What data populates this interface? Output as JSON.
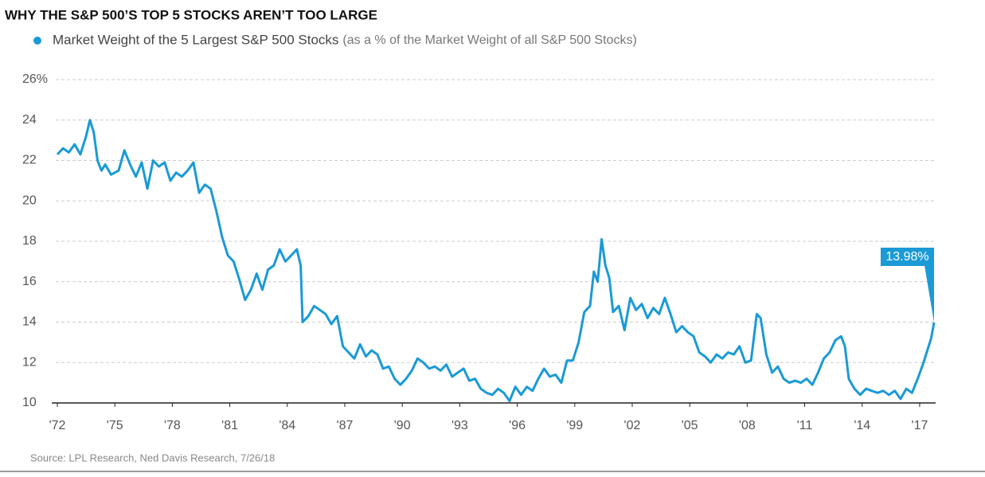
{
  "chart_data": {
    "type": "line",
    "title": "WHY THE S&P 500’S TOP 5 STOCKS AREN’T TOO LARGE",
    "series_note": "(as a % of the Market Weight of all S&P 500 Stocks)",
    "source": "Source: LPL Research, Ned Davis Research, 7/26/18",
    "x": [
      1972.0,
      1972.3,
      1972.6,
      1972.9,
      1973.2,
      1973.5,
      1973.7,
      1973.9,
      1974.1,
      1974.3,
      1974.5,
      1974.8,
      1975.2,
      1975.5,
      1975.8,
      1976.1,
      1976.4,
      1976.7,
      1977.0,
      1977.3,
      1977.6,
      1977.9,
      1978.2,
      1978.5,
      1978.8,
      1979.1,
      1979.4,
      1979.7,
      1980.0,
      1980.3,
      1980.6,
      1980.9,
      1981.2,
      1981.5,
      1981.8,
      1982.1,
      1982.4,
      1982.7,
      1983.0,
      1983.3,
      1983.6,
      1983.9,
      1984.2,
      1984.5,
      1984.7,
      1984.8,
      1985.1,
      1985.4,
      1985.7,
      1986.0,
      1986.3,
      1986.6,
      1986.9,
      1987.2,
      1987.5,
      1987.8,
      1988.1,
      1988.4,
      1988.7,
      1989.0,
      1989.3,
      1989.6,
      1989.9,
      1990.2,
      1990.5,
      1990.8,
      1991.1,
      1991.4,
      1991.7,
      1992.0,
      1992.3,
      1992.6,
      1992.9,
      1993.2,
      1993.5,
      1993.8,
      1994.1,
      1994.4,
      1994.7,
      1995.0,
      1995.3,
      1995.6,
      1995.9,
      1996.2,
      1996.5,
      1996.8,
      1997.1,
      1997.4,
      1997.7,
      1998.0,
      1998.3,
      1998.6,
      1998.9,
      1999.2,
      1999.5,
      1999.8,
      2000.0,
      2000.2,
      2000.4,
      2000.6,
      2000.8,
      2001.0,
      2001.3,
      2001.6,
      2001.9,
      2002.2,
      2002.5,
      2002.8,
      2003.1,
      2003.4,
      2003.7,
      2004.0,
      2004.3,
      2004.6,
      2004.9,
      2005.2,
      2005.5,
      2005.8,
      2006.1,
      2006.4,
      2006.7,
      2007.0,
      2007.3,
      2007.6,
      2007.9,
      2008.2,
      2008.5,
      2008.7,
      2009.0,
      2009.3,
      2009.6,
      2009.9,
      2010.2,
      2010.5,
      2010.8,
      2011.1,
      2011.4,
      2011.7,
      2012.0,
      2012.3,
      2012.6,
      2012.9,
      2013.1,
      2013.3,
      2013.6,
      2013.9,
      2014.2,
      2014.5,
      2014.8,
      2015.1,
      2015.4,
      2015.7,
      2016.0,
      2016.3,
      2016.6,
      2016.9,
      2017.2,
      2017.4,
      2017.6,
      2017.75
    ],
    "series": [
      {
        "name": "Market Weight of the 5 Largest S&P 500 Stocks",
        "color": "#1a9ad6",
        "values": [
          22.3,
          22.6,
          22.4,
          22.8,
          22.3,
          23.2,
          24.0,
          23.4,
          22.0,
          21.5,
          21.8,
          21.3,
          21.5,
          22.5,
          21.8,
          21.2,
          21.9,
          20.6,
          22.0,
          21.7,
          21.9,
          21.0,
          21.4,
          21.2,
          21.5,
          21.9,
          20.4,
          20.8,
          20.6,
          19.5,
          18.2,
          17.3,
          17.0,
          16.1,
          15.1,
          15.6,
          16.4,
          15.6,
          16.6,
          16.8,
          17.6,
          17.0,
          17.3,
          17.6,
          16.8,
          14.0,
          14.3,
          14.8,
          14.6,
          14.4,
          13.9,
          14.3,
          12.8,
          12.5,
          12.2,
          12.9,
          12.3,
          12.6,
          12.4,
          11.7,
          11.8,
          11.2,
          10.9,
          11.2,
          11.6,
          12.2,
          12.0,
          11.7,
          11.8,
          11.6,
          11.9,
          11.3,
          11.5,
          11.7,
          11.1,
          11.2,
          10.7,
          10.5,
          10.4,
          10.7,
          10.5,
          10.1,
          10.8,
          10.4,
          10.8,
          10.6,
          11.2,
          11.7,
          11.3,
          11.4,
          11.0,
          12.1,
          12.1,
          13.0,
          14.5,
          14.8,
          16.5,
          16.0,
          18.1,
          16.8,
          16.2,
          14.5,
          14.8,
          13.6,
          15.2,
          14.6,
          14.9,
          14.2,
          14.7,
          14.4,
          15.2,
          14.4,
          13.5,
          13.8,
          13.5,
          13.3,
          12.5,
          12.3,
          12.0,
          12.4,
          12.2,
          12.5,
          12.4,
          12.8,
          12.0,
          12.1,
          14.4,
          14.2,
          12.4,
          11.5,
          11.8,
          11.2,
          11.0,
          11.1,
          11.0,
          11.2,
          10.9,
          11.5,
          12.2,
          12.5,
          13.1,
          13.3,
          12.8,
          11.2,
          10.7,
          10.4,
          10.7,
          10.6,
          10.5,
          10.6,
          10.4,
          10.6,
          10.2,
          10.7,
          10.5,
          11.2,
          12.0,
          12.6,
          13.2,
          13.98
        ]
      }
    ],
    "annotation": {
      "x": 2017.75,
      "value": 13.98,
      "label": "13.98%"
    },
    "xlim": [
      1972,
      2017.75
    ],
    "xticks": [
      {
        "value": 1972,
        "label": "'72"
      },
      {
        "value": 1975,
        "label": "'75"
      },
      {
        "value": 1978,
        "label": "'78"
      },
      {
        "value": 1981,
        "label": "'81"
      },
      {
        "value": 1984,
        "label": "'84"
      },
      {
        "value": 1987,
        "label": "'87"
      },
      {
        "value": 1990,
        "label": "'90"
      },
      {
        "value": 1993,
        "label": "'93"
      },
      {
        "value": 1996,
        "label": "'96"
      },
      {
        "value": 1999,
        "label": "'99"
      },
      {
        "value": 2002,
        "label": "'02"
      },
      {
        "value": 2005,
        "label": "'05"
      },
      {
        "value": 2008,
        "label": "'08"
      },
      {
        "value": 2011,
        "label": "'11"
      },
      {
        "value": 2014,
        "label": "'14"
      },
      {
        "value": 2017,
        "label": "'17"
      }
    ],
    "ylim": [
      10,
      26
    ],
    "yticks": [
      10,
      12,
      14,
      16,
      18,
      20,
      22,
      24,
      {
        "value": 26,
        "label": "26%"
      }
    ],
    "grid": true
  }
}
